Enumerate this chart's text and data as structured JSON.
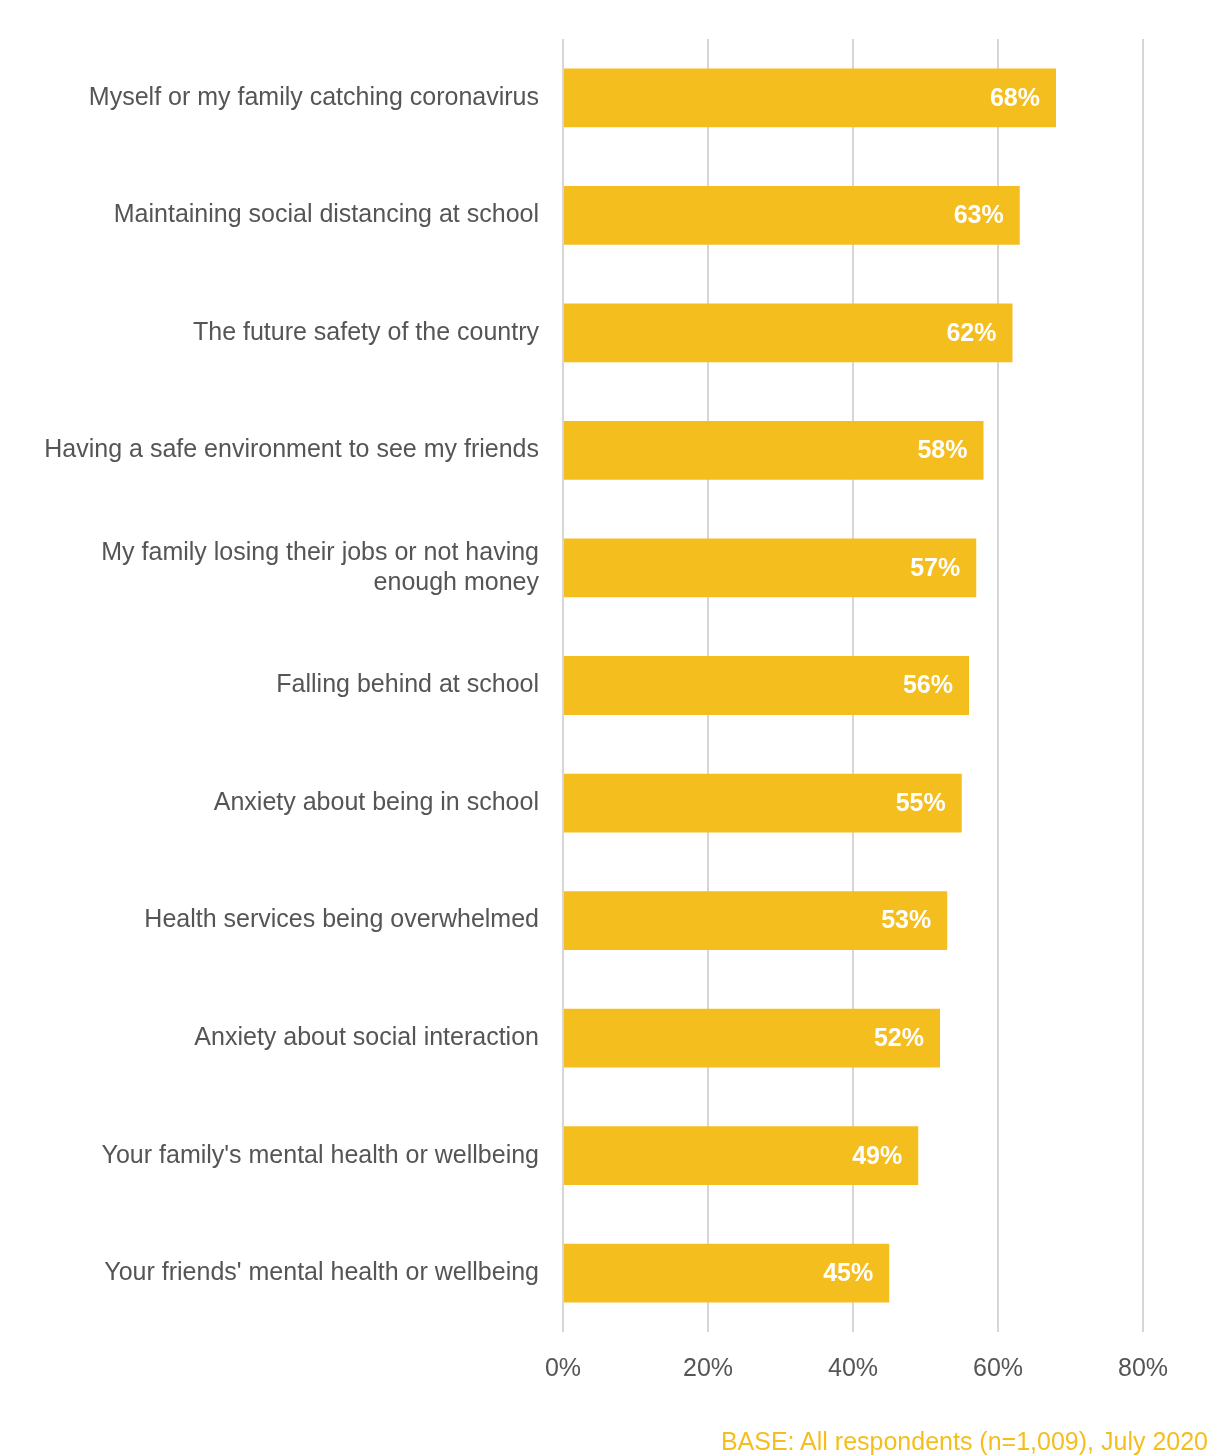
{
  "chart_data": {
    "type": "bar",
    "orientation": "horizontal",
    "categories": [
      "Myself or my family catching coronavirus",
      "Maintaining social distancing at school",
      "The future safety of the country",
      "Having a safe environment to see my friends",
      "My family losing their jobs or not having enough money",
      "Falling behind at school",
      "Anxiety about being in school",
      "Health services being overwhelmed",
      "Anxiety about social interaction",
      "Your family's mental health or wellbeing",
      "Your friends' mental health or wellbeing"
    ],
    "values": [
      68,
      63,
      62,
      58,
      57,
      56,
      55,
      53,
      52,
      49,
      45
    ],
    "value_labels": [
      "68%",
      "63%",
      "62%",
      "58%",
      "57%",
      "56%",
      "55%",
      "53%",
      "52%",
      "49%",
      "45%"
    ],
    "color": "#f5be1f",
    "xlim": [
      0,
      80
    ],
    "xticks": [
      {
        "value": 0,
        "label": "0%"
      },
      {
        "value": 20,
        "label": "20%"
      },
      {
        "value": 40,
        "label": "40%"
      },
      {
        "value": 60,
        "label": "60%"
      },
      {
        "value": 80,
        "label": "80%"
      }
    ],
    "grid": "x",
    "legend": false,
    "annotations": [
      "BASE: All respondents (n=1,009), July 2020"
    ]
  }
}
